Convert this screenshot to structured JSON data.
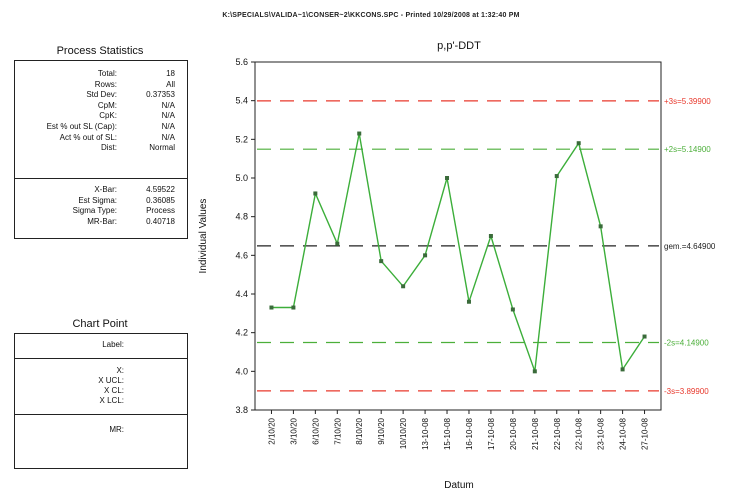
{
  "header": {
    "title": "K:\\SPECIALS\\VALIDA~1\\CONSER~2\\KKCONS.SPC - Printed 10/29/2008 at 1:32:40 PM"
  },
  "process_statistics": {
    "title": "Process Statistics",
    "rows": [
      {
        "label": "Total:",
        "value": "18"
      },
      {
        "label": "Rows:",
        "value": "All"
      },
      {
        "label": "Std Dev:",
        "value": "0.37353"
      },
      {
        "label": "CpM:",
        "value": "N/A"
      },
      {
        "label": "CpK:",
        "value": "N/A"
      },
      {
        "label": "Est % out SL (Cap):",
        "value": "N/A"
      },
      {
        "label": "Act % out of SL:",
        "value": "N/A"
      },
      {
        "label": "Dist:",
        "value": "Normal"
      }
    ],
    "rows2": [
      {
        "label": "X-Bar:",
        "value": "4.59522"
      },
      {
        "label": "Est Sigma:",
        "value": "0.36085"
      },
      {
        "label": "Sigma Type:",
        "value": "Process"
      },
      {
        "label": "MR-Bar:",
        "value": "0.40718"
      }
    ]
  },
  "chart_point": {
    "title": "Chart Point",
    "label": "Label:",
    "x_labels": [
      "X:",
      "X UCL:",
      "X CL:",
      "X LCL:"
    ],
    "mr_label": "MR:"
  },
  "chart_data": {
    "type": "line",
    "title": "p,p'-DDT",
    "xlabel": "Datum",
    "ylabel": "Individual Values",
    "ylim": [
      3.8,
      5.6
    ],
    "yticks": [
      "3.8",
      "4.0",
      "4.2",
      "4.4",
      "4.6",
      "4.8",
      "5.0",
      "5.2",
      "5.4",
      "5.6"
    ],
    "categories": [
      "2/10/20",
      "3/10/20",
      "6/10/20",
      "7/10/20",
      "8/10/20",
      "9/10/20",
      "10/10/20",
      "13-10-08",
      "15-10-08",
      "16-10-08",
      "17-10-08",
      "20-10-08",
      "21-10-08",
      "22-10-08",
      "22-10-08",
      "23-10-08",
      "24-10-08",
      "27-10-08"
    ],
    "values": [
      4.33,
      4.33,
      4.92,
      4.66,
      5.23,
      4.57,
      4.44,
      4.6,
      5.0,
      4.36,
      4.7,
      4.32,
      4.0,
      5.01,
      5.18,
      4.75,
      4.01,
      4.18
    ],
    "limits": [
      {
        "value": 5.399,
        "label": "+3s=5.39900",
        "color": "#e8382c"
      },
      {
        "value": 5.149,
        "label": "+2s=5.14900",
        "color": "#4caf3a"
      },
      {
        "value": 4.649,
        "label": "gem.=4.64900",
        "color": "#222222"
      },
      {
        "value": 4.149,
        "label": "-2s=4.14900",
        "color": "#4caf3a"
      },
      {
        "value": 3.899,
        "label": "-3s=3.89900",
        "color": "#e8382c"
      }
    ],
    "line_color": "#3cae3a",
    "marker_color": "#3a6b3a",
    "grid": false
  }
}
